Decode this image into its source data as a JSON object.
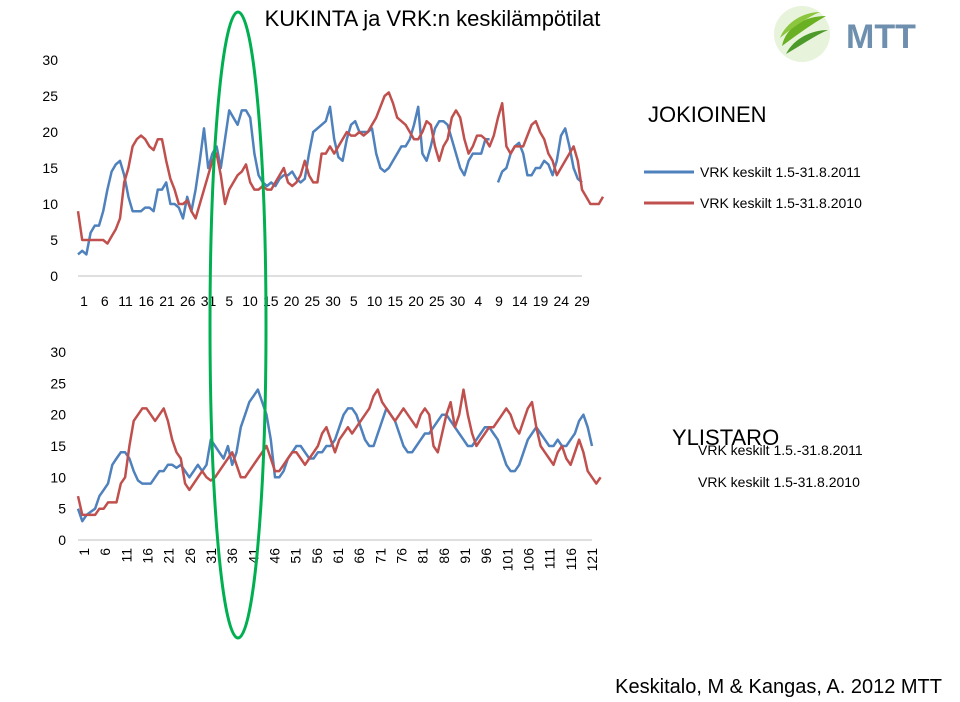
{
  "title": "KUKINTA ja VRK:n keskilämpötilat",
  "credit": "Keskitalo, M & Kangas, A. 2012 MTT",
  "logo_text": "MTT",
  "colors": {
    "s2011": "#4f81bd",
    "s2010": "#c0504d",
    "oval": "#00b050",
    "logo_green": "#6ab023",
    "logo_blue": "#6f8fae"
  },
  "chart_data": [
    {
      "type": "line",
      "location_label": "JOKIOINEN",
      "ylim": [
        0,
        30
      ],
      "yticks": [
        "0",
        "5",
        "10",
        "15",
        "20",
        "25",
        "30"
      ],
      "xtick_labels": [
        "1",
        "6",
        "11",
        "16",
        "21",
        "26",
        "31",
        "5",
        "10",
        "15",
        "20",
        "25",
        "30",
        "5",
        "10",
        "15",
        "20",
        "25",
        "30",
        "4",
        "9",
        "14",
        "19",
        "24",
        "29"
      ],
      "legend_position": "right",
      "series": [
        {
          "name": "VRK keskilt 1.5-31.8.2011",
          "color_key": "s2011",
          "values": [
            3,
            3.5,
            3,
            6,
            7,
            7,
            9,
            12,
            14.5,
            15.5,
            16,
            14,
            11,
            9,
            9,
            9,
            9.5,
            9.5,
            9,
            12,
            12,
            13,
            10,
            10,
            9.5,
            8,
            11,
            9,
            12,
            16,
            20.5,
            15,
            17,
            18,
            15,
            19,
            23,
            22,
            21,
            23,
            23,
            22,
            17,
            14,
            13,
            12.5,
            13,
            12.5,
            13.5,
            14,
            14,
            14.5,
            13.5,
            13,
            13.5,
            17,
            20,
            20.5,
            21,
            21.5,
            23.5,
            19,
            16.5,
            16,
            19,
            21,
            21.5,
            20,
            20,
            20,
            20.5,
            17,
            15,
            14.5,
            15,
            16,
            17,
            18,
            18,
            19,
            21,
            23.5,
            17,
            16,
            18,
            20.5,
            21.5,
            21.5,
            21,
            19,
            17,
            15,
            14,
            16,
            17,
            17,
            17,
            19,
            19,
            null,
            13,
            14.5,
            15,
            17,
            18,
            18.5,
            17,
            14,
            14,
            15,
            15,
            16,
            15.5,
            14,
            16,
            19.5,
            20.5,
            18,
            15,
            13.5,
            13
          ]
        },
        {
          "name": "VRK keskilt 1.5-31.8.2010",
          "color_key": "s2010",
          "values": [
            9,
            5,
            5,
            5,
            5,
            5,
            5,
            4.5,
            5.5,
            6.5,
            8,
            13,
            15,
            18,
            19,
            19.5,
            19,
            18,
            17.5,
            19,
            19,
            16,
            13.5,
            12,
            10,
            10,
            10.5,
            9,
            8,
            10,
            12,
            14,
            16,
            17,
            14,
            10,
            12,
            13,
            14,
            14.5,
            15.5,
            13,
            12,
            12,
            12.5,
            12,
            12,
            13,
            14,
            15,
            13,
            12.5,
            13,
            14,
            16,
            14,
            13,
            13,
            17,
            17,
            18,
            17,
            18,
            19,
            20,
            19.5,
            19.5,
            20,
            19.5,
            20,
            21,
            22,
            23.5,
            25,
            25.5,
            24,
            22,
            21.5,
            21,
            20,
            19,
            19,
            20,
            21.5,
            21,
            18,
            16,
            18,
            19,
            22,
            23,
            22,
            19,
            17,
            18,
            19.5,
            19.5,
            19,
            18,
            19.5,
            22,
            24,
            18,
            17,
            18,
            18,
            18,
            19.5,
            21,
            21.5,
            20,
            19,
            17,
            16,
            14,
            15,
            16,
            17,
            18,
            16,
            12,
            11,
            10,
            10,
            10,
            11
          ]
        }
      ]
    },
    {
      "type": "line",
      "location_label": "YLISTARO",
      "ylim": [
        0,
        30
      ],
      "yticks": [
        "0",
        "5",
        "10",
        "15",
        "20",
        "25",
        "30"
      ],
      "xtick_labels": [
        "1",
        "6",
        "11",
        "16",
        "21",
        "26",
        "31",
        "36",
        "41",
        "46",
        "51",
        "56",
        "61",
        "66",
        "71",
        "76",
        "81",
        "86",
        "91",
        "96",
        "101",
        "106",
        "111",
        "116",
        "121"
      ],
      "legend_position": "right",
      "series": [
        {
          "name": "VRK keskilt 1.5.-31.8.2011",
          "color_key": "s2011",
          "values": [
            5,
            3,
            4,
            4.5,
            5,
            7,
            8,
            9,
            12,
            13,
            14,
            14,
            13,
            11,
            9.5,
            9,
            9,
            9,
            10,
            11,
            11,
            12,
            12,
            11.5,
            12,
            11,
            10,
            11,
            12,
            11,
            12,
            16,
            15,
            14,
            13,
            15,
            12,
            14,
            18,
            20,
            22,
            23,
            24,
            22,
            20,
            16,
            10,
            10,
            11,
            13,
            14,
            15,
            15,
            14,
            13,
            13,
            14,
            14,
            15,
            15,
            16,
            18,
            20,
            21,
            21,
            20,
            18,
            16,
            15,
            15,
            17,
            19,
            21,
            20,
            19,
            17,
            15,
            14,
            14,
            15,
            16,
            17,
            17,
            18,
            19,
            20,
            20,
            19,
            18,
            17,
            16,
            15,
            15,
            16,
            17,
            18,
            18,
            17,
            16,
            14,
            12,
            11,
            11,
            12,
            14,
            16,
            17,
            18,
            17,
            16,
            15,
            15,
            16,
            15,
            15,
            16,
            17,
            19,
            20,
            18,
            15
          ]
        },
        {
          "name": "VRK keskilt 1.5-31.8.2010",
          "color_key": "s2010",
          "values": [
            7,
            4,
            4,
            4,
            4,
            5,
            5,
            6,
            6,
            6,
            9,
            10,
            15,
            19,
            20,
            21,
            21,
            20,
            19,
            20,
            21,
            19,
            16,
            14,
            13,
            9,
            8,
            9,
            10,
            11,
            10,
            9.5,
            10,
            11,
            12,
            13,
            14,
            12,
            10,
            10,
            11,
            12,
            13,
            14,
            15,
            13,
            11,
            11,
            12,
            13,
            14,
            14,
            13,
            12,
            13,
            14,
            15,
            17,
            18,
            16,
            14,
            16,
            17,
            18,
            17,
            18,
            19,
            20,
            21,
            23,
            24,
            22,
            21,
            20,
            19,
            20,
            21,
            20,
            19,
            18,
            20,
            21,
            20,
            15,
            14,
            17,
            20,
            22,
            18,
            20,
            24,
            20,
            17,
            15,
            16,
            17,
            18,
            18,
            19,
            20,
            21,
            20,
            18,
            17,
            19,
            21,
            22,
            18,
            15,
            14,
            13,
            12,
            14,
            15,
            13,
            12,
            14,
            16,
            14,
            11,
            10,
            9,
            10
          ]
        }
      ]
    }
  ]
}
